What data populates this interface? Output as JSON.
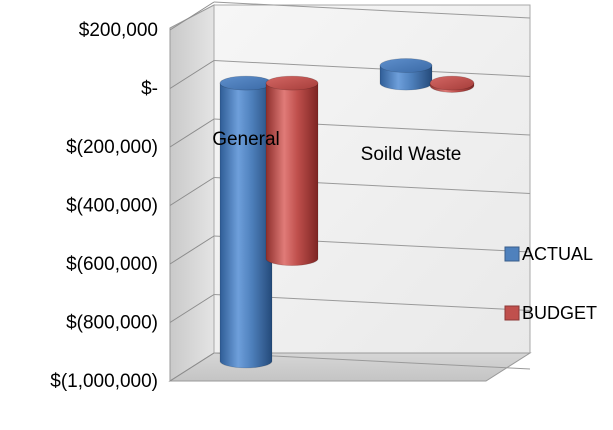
{
  "chart_data": {
    "type": "bar",
    "style": "3d-cylinder",
    "categories": [
      "General",
      "Soild Waste"
    ],
    "series": [
      {
        "name": "ACTUAL",
        "color": "#4f81bd",
        "values": [
          -950000,
          60000
        ]
      },
      {
        "name": "BUDGET",
        "color": "#c0504d",
        "values": [
          -600000,
          -8000
        ]
      }
    ],
    "ylim": [
      -1000000,
      200000
    ],
    "tick_values": [
      200000,
      0,
      -200000,
      -400000,
      -600000,
      -800000,
      -1000000
    ],
    "tick_labels": [
      "$200,000",
      "$-",
      "$(200,000)",
      "$(400,000)",
      "$(600,000)",
      "$(800,000)",
      "$(1,000,000)"
    ],
    "legend_position": "right",
    "grid": true
  }
}
